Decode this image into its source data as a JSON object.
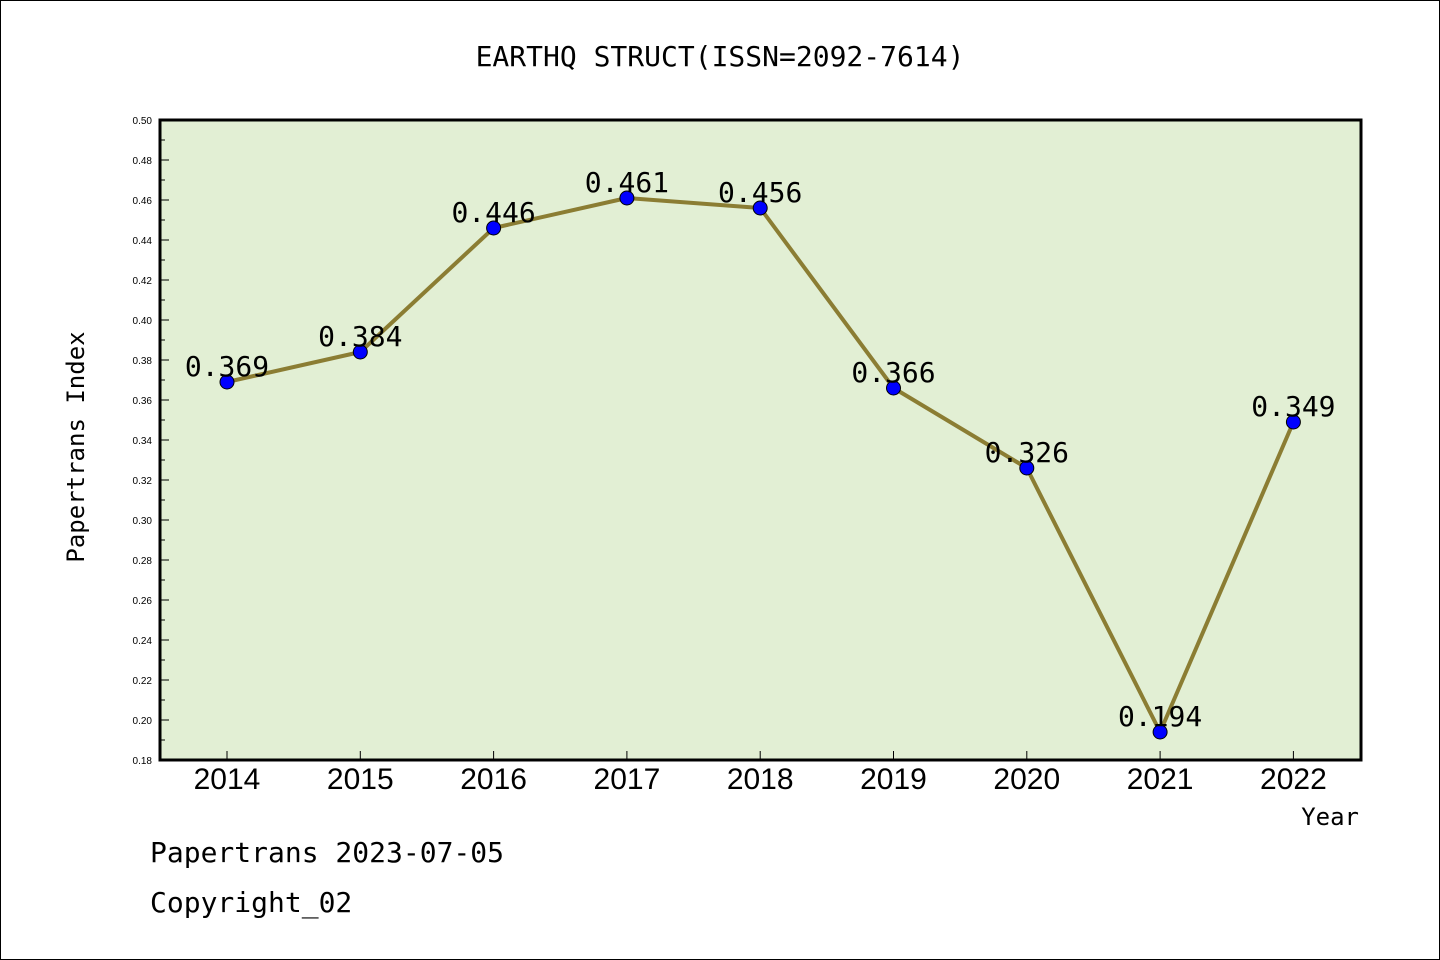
{
  "chart_data": {
    "type": "line",
    "title": "EARTHQ STRUCT(ISSN=2092-7614)",
    "xlabel": "Year",
    "ylabel": "Papertrans Index",
    "categories": [
      "2014",
      "2015",
      "2016",
      "2017",
      "2018",
      "2019",
      "2020",
      "2021",
      "2022"
    ],
    "series": [
      {
        "values": [
          0.369,
          0.384,
          0.446,
          0.461,
          0.456,
          0.366,
          0.326,
          0.194,
          0.349
        ],
        "labels": [
          "0.369",
          "0.384",
          "0.446",
          "0.461",
          "0.456",
          "0.366",
          "0.326",
          "0.194",
          "0.349"
        ]
      }
    ],
    "ylim": [
      0.18,
      0.5
    ],
    "yticks": [
      "0.18",
      "0.20",
      "0.22",
      "0.24",
      "0.26",
      "0.28",
      "0.30",
      "0.32",
      "0.34",
      "0.36",
      "0.38",
      "0.40",
      "0.42",
      "0.44",
      "0.46",
      "0.48",
      "0.50"
    ],
    "grid": false,
    "colors": {
      "line": "#8b7d33",
      "marker": "#0000ff",
      "plot_background": "#e2efd4"
    }
  },
  "footer": {
    "line1": "Papertrans 2023-07-05",
    "line2": "Copyright_02"
  }
}
